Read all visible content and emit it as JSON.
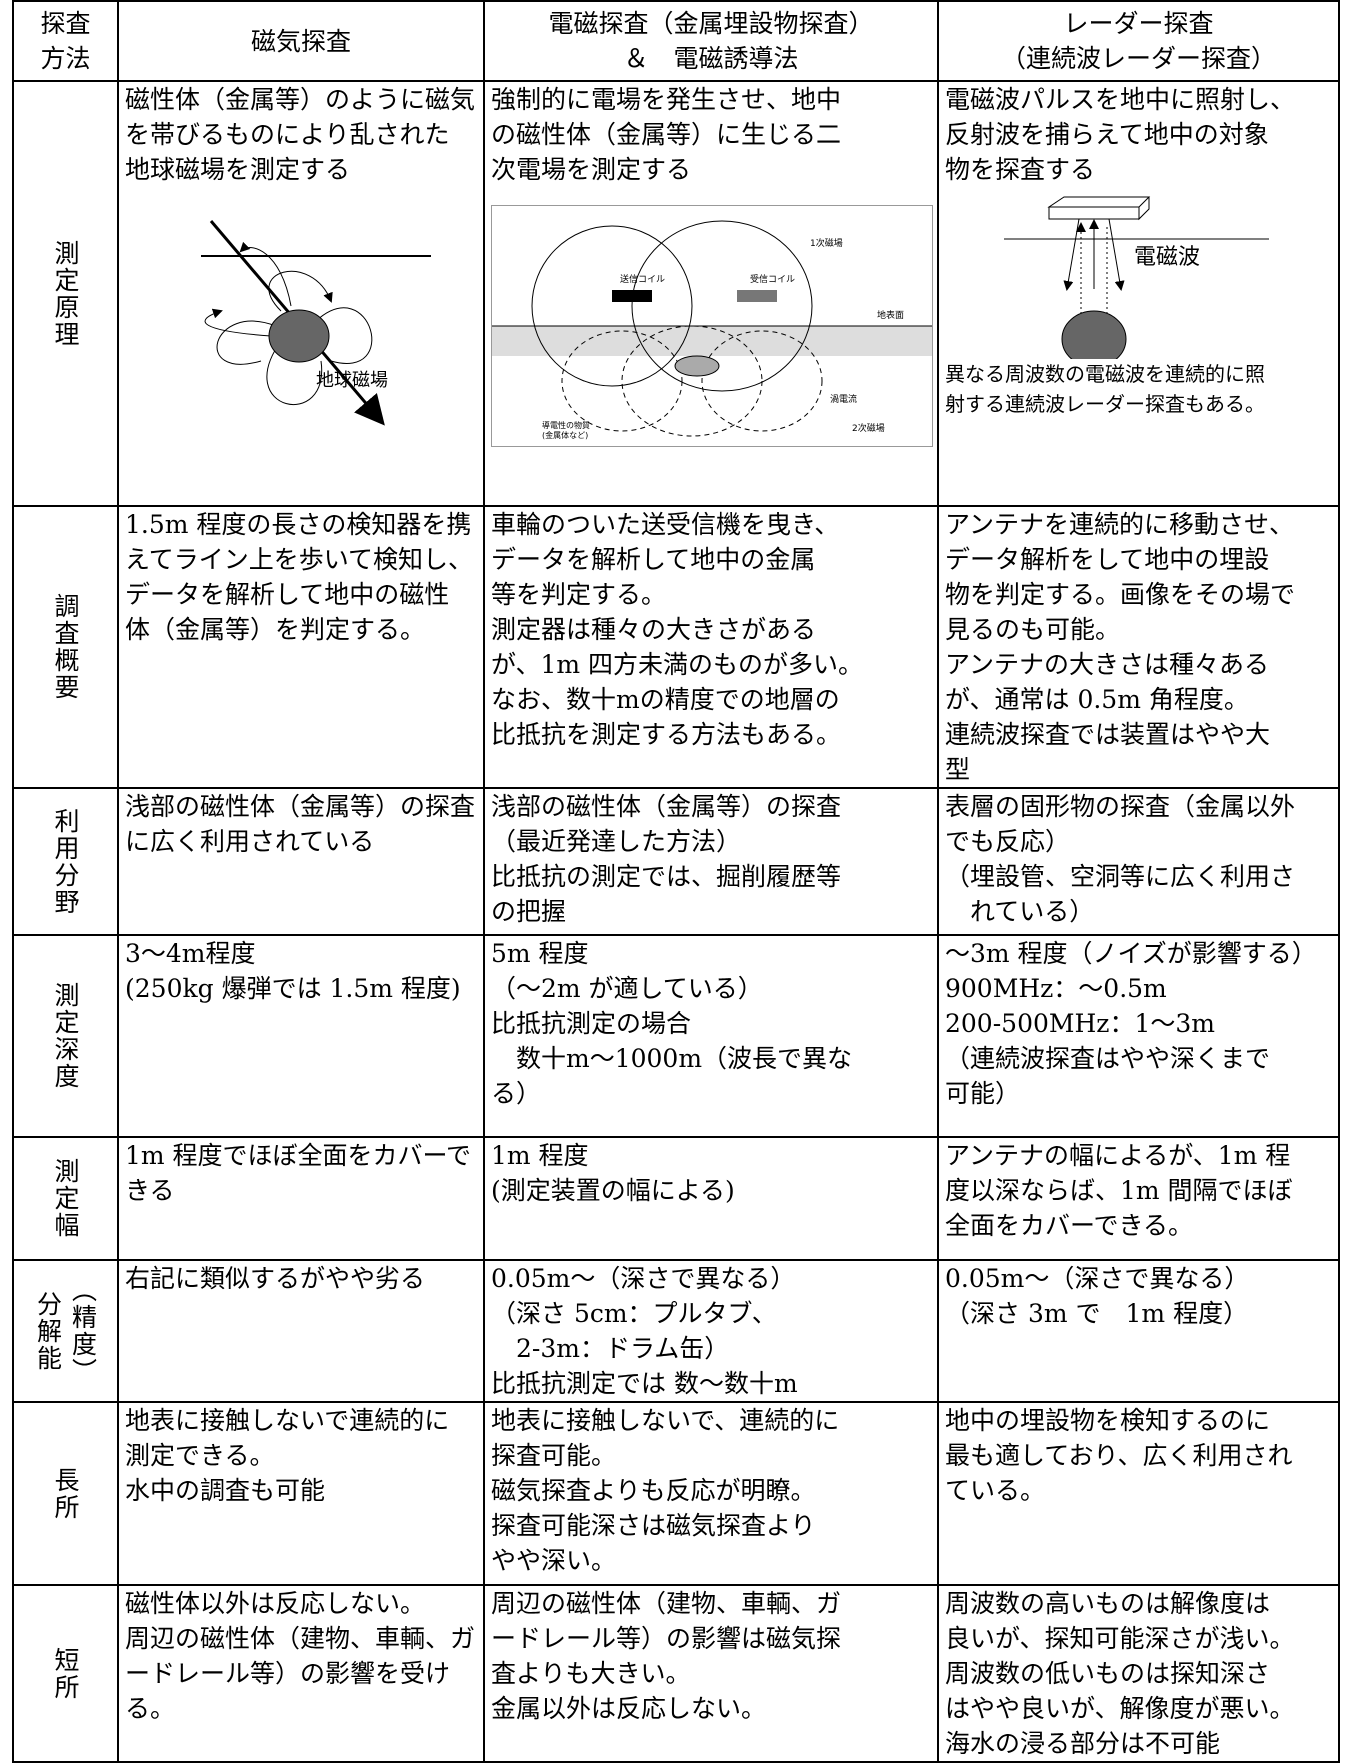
{
  "table": {
    "header": [
      [
        "探査",
        "方法"
      ],
      [
        "磁気探査"
      ],
      [
        "電磁探査（金属埋設物探査）",
        "＆　電磁誘導法"
      ],
      [
        "レーダー探査",
        "（連続波レーダー探査）"
      ]
    ],
    "rows": [
      {
        "label": "測定原理",
        "cells": [
          [
            "磁性体（金属等）のように磁気",
            "を帯びるものにより乱された",
            "地球磁場を測定する"
          ],
          [
            "強制的に電場を発生させ、地中",
            "の磁性体（金属等）に生じる二",
            "次電場を測定する"
          ],
          [
            "電磁波パルスを地中に照射し、",
            "反射波を捕らえて地中の対象",
            "物を探査する"
          ]
        ],
        "figures": {
          "magnetic": [
            "地球磁場"
          ],
          "em": [
            "1次磁場",
            "送信コイル",
            "受信コイル",
            "地表面",
            "渦電流",
            "導電性の物質",
            "(金属体など)",
            "2次磁場"
          ],
          "radar": [
            "電磁波"
          ]
        },
        "note": [
          "異なる周波数の電磁波を連続的に照",
          "射する連続波レーダー探査もある。"
        ]
      },
      {
        "label": "調査概要",
        "cells": [
          [
            "1.5m 程度の長さの検知器を携",
            "えてライン上を歩いて検知し、",
            "データを解析して地中の磁性",
            "体（金属等）を判定する。"
          ],
          [
            "車輪のついた送受信機を曳き、",
            "データを解析して地中の金属",
            "等を判定する。",
            "測定器は種々の大きさがある",
            "が、1m 四方未満のものが多い。",
            "なお、数十mの精度での地層の",
            "比抵抗を測定する方法もある。"
          ],
          [
            "アンテナを連続的に移動させ、",
            "データ解析をして地中の埋設",
            "物を判定する。画像をその場で",
            "見るのも可能。",
            "アンテナの大きさは種々ある",
            "が、通常は 0.5m 角程度。",
            "連続波探査では装置はやや大",
            "型"
          ]
        ]
      },
      {
        "label": "利用分野",
        "cells": [
          [
            "浅部の磁性体（金属等）の探査",
            "に広く利用されている"
          ],
          [
            "浅部の磁性体（金属等）の探査",
            "（最近発達した方法）",
            "比抵抗の測定では、掘削履歴等",
            "の把握"
          ],
          [
            "表層の固形物の探査（金属以外",
            "でも反応）",
            "（埋設管、空洞等に広く利用さ",
            "　れている）"
          ]
        ]
      },
      {
        "label": "測定深度",
        "cells": [
          [
            "3～4m程度",
            "(250kg 爆弾では 1.5m 程度)"
          ],
          [
            "5m 程度",
            "（～2m が適している）",
            "比抵抗測定の場合",
            "　数十m～1000m（波長で異な",
            "る）"
          ],
          [
            "～3m 程度（ノイズが影響する）",
            "900MHz：～0.5m",
            "200-500MHz：1～3m",
            "（連続波探査はやや深くまで",
            "可能）"
          ]
        ]
      },
      {
        "label": "測定幅",
        "cells": [
          [
            "1m 程度でほぼ全面をカバーで",
            "きる"
          ],
          [
            "1m 程度",
            "(測定装置の幅による)"
          ],
          [
            "アンテナの幅によるが、1m 程",
            "度以深ならば、1m 間隔でほぼ",
            "全面をカバーできる。"
          ]
        ]
      },
      {
        "label": "分解能",
        "sublabel": "（精度）",
        "cells": [
          [
            "右記に類似するがやや劣る"
          ],
          [
            "0.05m～（深さで異なる）",
            "（深さ 5cm：プルタブ、",
            "　2-3m：ドラム缶）",
            "比抵抗測定では 数～数十m"
          ],
          [
            "0.05m～（深さで異なる）",
            "（深さ 3m で　1m 程度）"
          ]
        ]
      },
      {
        "label": "長所",
        "cells": [
          [
            "地表に接触しないで連続的に",
            "測定できる。",
            "水中の調査も可能"
          ],
          [
            "地表に接触しないで、連続的に",
            "探査可能。",
            "磁気探査よりも反応が明瞭。",
            "探査可能深さは磁気探査より",
            "やや深い。"
          ],
          [
            "地中の埋設物を検知するのに",
            "最も適しており、広く利用され",
            "ている。"
          ]
        ]
      },
      {
        "label": "短所",
        "cells": [
          [
            "磁性体以外は反応しない。",
            "周辺の磁性体（建物、車輌、ガ",
            "ードレール等）の影響を受け",
            "る。"
          ],
          [
            "周辺の磁性体（建物、車輌、ガ",
            "ードレール等）の影響は磁気探",
            "査よりも大きい。",
            "金属以外は反応しない。"
          ],
          [
            "周波数の高いものは解像度は",
            "良いが、探知可能深さが浅い。",
            "周波数の低いものは探知深さ",
            "はやや良いが、解像度が悪い。",
            "海水の浸る部分は不可能"
          ]
        ]
      }
    ]
  }
}
